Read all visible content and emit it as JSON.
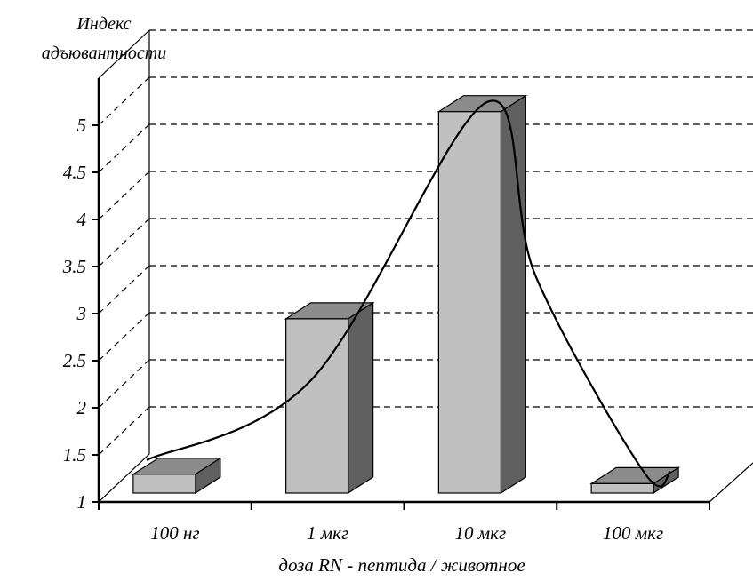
{
  "chart_data": {
    "type": "bar",
    "ylabel_lines": [
      "Индекс",
      "адъювантности"
    ],
    "xlabel": "доза RN - пептида / животное",
    "categories": [
      "100 нг",
      "1 мкг",
      "10 мкг",
      "100 мкг"
    ],
    "values": [
      1.2,
      2.85,
      5.05,
      1.1
    ],
    "ylim": [
      1,
      5
    ],
    "yticks": [
      "1",
      "1.5",
      "2",
      "2.5",
      "3",
      "3.5",
      "4",
      "4.5",
      "5"
    ],
    "grid": true,
    "grid_style": "dashed",
    "three_d": true,
    "trend_curve": true,
    "colors": {
      "bar_front": "#c0c0c0",
      "bar_top": "#8c8c8c",
      "bar_side": "#606060",
      "line": "#000000"
    }
  }
}
